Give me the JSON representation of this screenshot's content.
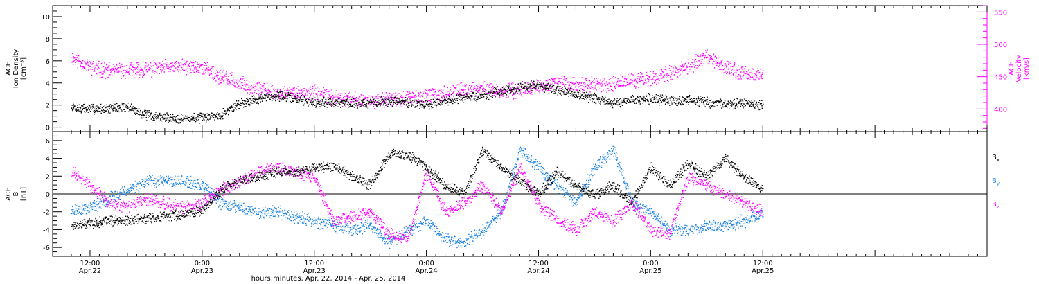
{
  "chart_data": [
    {
      "type": "scatter",
      "panel": "top",
      "left_axis": {
        "label_lines": [
          "ACE",
          "Ion Density",
          "[cm⁻³]"
        ],
        "ylim": [
          -0.4,
          11
        ],
        "ticks": [
          0,
          2,
          4,
          6,
          8,
          10
        ],
        "color": "#000000"
      },
      "right_axis": {
        "label_lines": [
          "ACE",
          "Velocity",
          "[km/s]"
        ],
        "ylim": [
          365,
          560
        ],
        "ticks": [
          400,
          450,
          500,
          550
        ],
        "color": "#ff00ff"
      },
      "series": [
        {
          "axis": "left",
          "color": "#000000",
          "x": [
            10,
            12,
            14,
            16,
            18,
            20,
            22,
            24,
            26,
            28,
            30,
            32,
            34,
            36,
            38,
            40,
            42,
            44,
            46,
            48,
            50,
            52,
            54,
            56,
            58,
            60,
            62,
            64,
            66,
            68,
            70,
            72,
            74,
            76,
            78,
            80,
            82,
            84
          ],
          "y": [
            1.8,
            1.7,
            1.7,
            1.9,
            1.1,
            0.9,
            0.8,
            0.9,
            1.2,
            2.2,
            2.6,
            2.9,
            2.6,
            2.3,
            2.3,
            2.2,
            2.2,
            2.4,
            2.3,
            2.0,
            2.5,
            2.7,
            2.9,
            3.3,
            3.6,
            3.8,
            3.3,
            3.0,
            2.6,
            2.2,
            2.5,
            2.6,
            2.4,
            2.5,
            2.3,
            2.1,
            2.2,
            2.0
          ]
        },
        {
          "axis": "right",
          "color": "#ff00ff",
          "x": [
            10,
            12,
            14,
            16,
            18,
            20,
            22,
            24,
            26,
            28,
            30,
            32,
            34,
            36,
            38,
            40,
            42,
            44,
            46,
            48,
            50,
            52,
            54,
            56,
            58,
            60,
            62,
            64,
            66,
            68,
            70,
            72,
            74,
            76,
            78,
            80,
            82,
            84
          ],
          "y": [
            480,
            465,
            460,
            460,
            462,
            465,
            466,
            465,
            450,
            440,
            432,
            425,
            425,
            425,
            418,
            415,
            413,
            415,
            418,
            420,
            425,
            430,
            432,
            428,
            430,
            436,
            440,
            440,
            438,
            440,
            444,
            448,
            455,
            468,
            480,
            465,
            455,
            455
          ]
        }
      ]
    },
    {
      "type": "scatter",
      "panel": "bottom",
      "left_axis": {
        "label_lines": [
          "ACE",
          "B",
          "[nT]"
        ],
        "ylim": [
          -7,
          7
        ],
        "ticks": [
          -6,
          -4,
          -2,
          0,
          2,
          4,
          6
        ],
        "color": "#000000"
      },
      "zero_line": true,
      "series": [
        {
          "name": "Bx",
          "color": "#000000",
          "x": [
            10,
            12,
            14,
            16,
            18,
            20,
            22,
            24,
            26,
            28,
            30,
            32,
            34,
            36,
            38,
            40,
            42,
            44,
            46,
            48,
            50,
            52,
            54,
            56,
            58,
            60,
            62,
            64,
            66,
            68,
            70,
            72,
            74,
            76,
            78,
            80,
            82,
            84
          ],
          "y": [
            -3.5,
            -3.2,
            -3.0,
            -3.0,
            -2.7,
            -2.5,
            -2.2,
            -1.8,
            0.5,
            1.5,
            2.0,
            2.5,
            2.5,
            3.0,
            3.2,
            2.0,
            1.0,
            4.5,
            4.5,
            3.0,
            1.0,
            0.0,
            5.0,
            3.0,
            1.5,
            0.0,
            2.5,
            1.0,
            0.0,
            1.0,
            -1.0,
            3.0,
            1.0,
            3.5,
            2.0,
            4.0,
            2.0,
            0.5
          ]
        },
        {
          "name": "By",
          "color": "#1a82e0",
          "x": [
            10,
            12,
            14,
            16,
            18,
            20,
            22,
            24,
            26,
            28,
            30,
            32,
            34,
            36,
            38,
            40,
            42,
            44,
            46,
            48,
            50,
            52,
            54,
            56,
            58,
            60,
            62,
            64,
            66,
            68,
            70,
            72,
            74,
            76,
            78,
            80,
            82,
            84
          ],
          "y": [
            -1.8,
            -1.5,
            -0.5,
            0.5,
            1.5,
            1.5,
            1.4,
            1.0,
            -1.0,
            -1.5,
            -2.0,
            -2.0,
            -2.5,
            -3.0,
            -3.5,
            -4.0,
            -3.5,
            -5.5,
            -4.0,
            -3.0,
            -5.0,
            -5.5,
            -4.0,
            -2.0,
            5.0,
            3.0,
            1.0,
            -1.0,
            3.0,
            5.0,
            -1.0,
            -2.0,
            -4.0,
            -4.0,
            -3.5,
            -3.5,
            -3.0,
            -2.0
          ]
        },
        {
          "name": "Bz",
          "color": "#ff00ff",
          "x": [
            10,
            12,
            14,
            16,
            18,
            20,
            22,
            24,
            26,
            28,
            30,
            32,
            34,
            36,
            38,
            40,
            42,
            44,
            46,
            48,
            50,
            52,
            54,
            56,
            58,
            60,
            62,
            64,
            66,
            68,
            70,
            72,
            74,
            76,
            78,
            80,
            82,
            84
          ],
          "y": [
            2.5,
            1.0,
            -1.0,
            -1.5,
            -0.5,
            -1.0,
            -1.5,
            -1.0,
            0.5,
            1.5,
            2.5,
            3.0,
            2.5,
            2.0,
            -3.0,
            -2.5,
            -2.0,
            -4.5,
            -5.0,
            2.5,
            -2.0,
            -1.0,
            1.0,
            -2.0,
            3.0,
            -1.0,
            -3.0,
            -4.0,
            -2.0,
            -3.0,
            -1.0,
            -4.0,
            -4.5,
            2.0,
            1.0,
            0.0,
            -1.0,
            -2.0
          ]
        }
      ],
      "legend": [
        {
          "name": "B",
          "sub": "x",
          "color": "#000000"
        },
        {
          "name": "B",
          "sub": "y",
          "color": "#1a82e0"
        },
        {
          "name": "B",
          "sub": "z",
          "color": "#ff00ff"
        }
      ]
    }
  ],
  "x_axis": {
    "units": "hours since 00:00 Apr. 22, 2014",
    "xlim": [
      8,
      108
    ],
    "ticks": [
      {
        "x": 12,
        "time": "12:00",
        "date": "Apr.22"
      },
      {
        "x": 24,
        "time": "0:00",
        "date": "Apr.23"
      },
      {
        "x": 36,
        "time": "12:00",
        "date": "Apr.23"
      },
      {
        "x": 48,
        "time": "0:00",
        "date": "Apr.24"
      },
      {
        "x": 60,
        "time": "12:00",
        "date": "Apr.24"
      },
      {
        "x": 72,
        "time": "0:00",
        "date": "Apr.25"
      },
      {
        "x": 84,
        "time": "12:00",
        "date": "Apr.25"
      }
    ],
    "title": "hours:minutes, Apr. 22, 2014 - Apr. 25, 2014"
  }
}
